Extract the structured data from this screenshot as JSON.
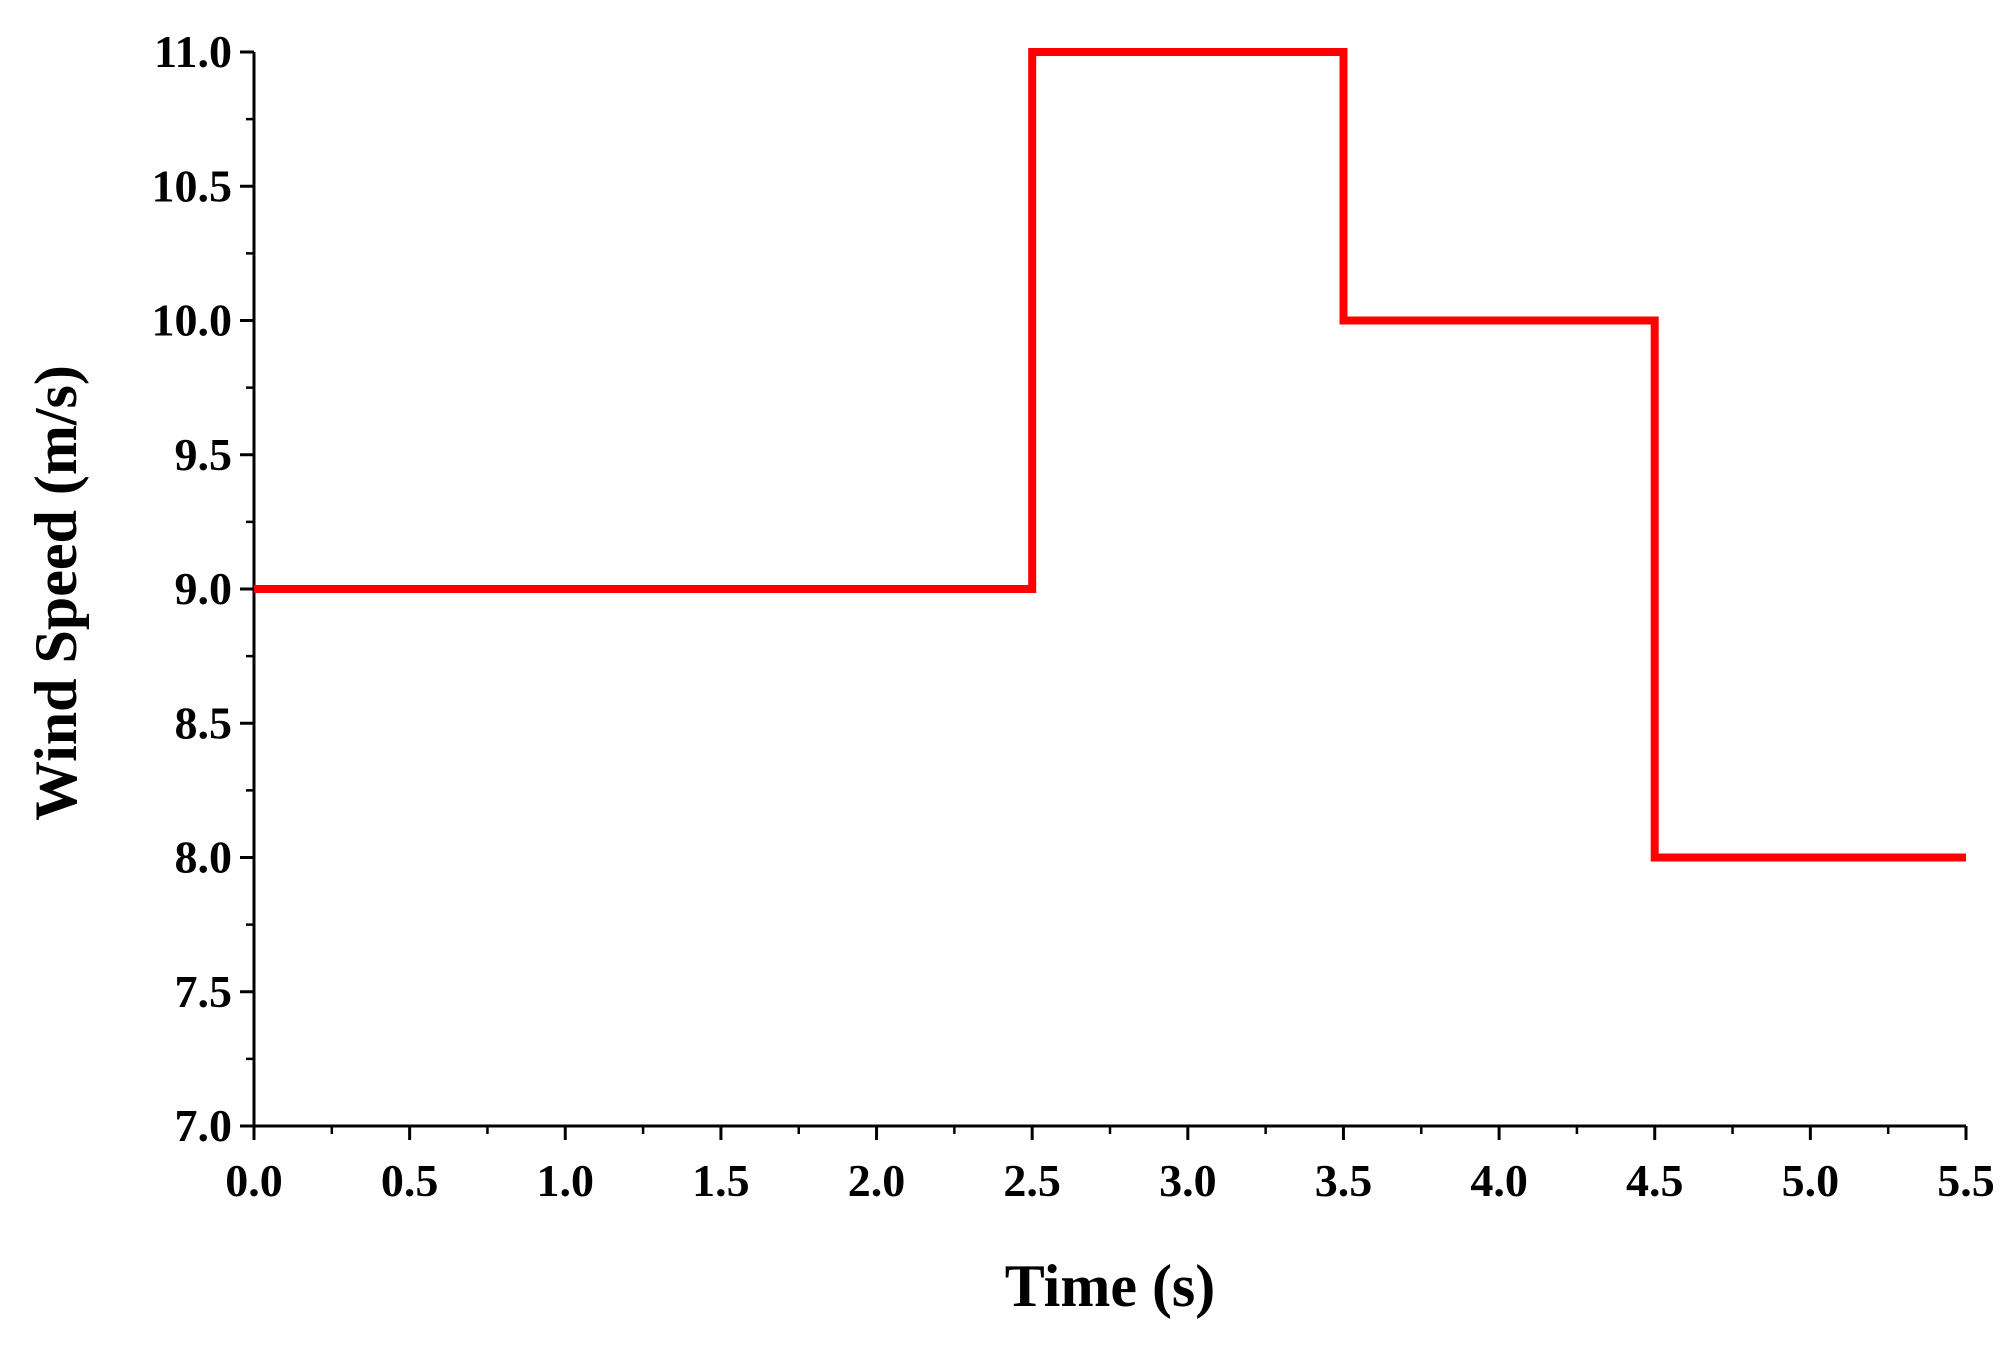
{
  "chart_data": {
    "type": "line",
    "step": true,
    "xlabel": "Time (s)",
    "ylabel": "Wind Speed (m/s)",
    "xlim": [
      0.0,
      5.5
    ],
    "ylim": [
      7.0,
      11.0
    ],
    "xticks": [
      "0.0",
      "0.5",
      "1.0",
      "1.5",
      "2.0",
      "2.5",
      "3.0",
      "3.5",
      "4.0",
      "4.5",
      "5.0",
      "5.5"
    ],
    "yticks": [
      "7.0",
      "7.5",
      "8.0",
      "8.5",
      "9.0",
      "9.5",
      "10.0",
      "10.5",
      "11.0"
    ],
    "grid": false,
    "series": [
      {
        "color": "#ff0000",
        "x": [
          0.0,
          2.5,
          2.5,
          3.5,
          3.5,
          4.5,
          4.5,
          5.5
        ],
        "y": [
          9.0,
          9.0,
          11.0,
          11.0,
          10.0,
          10.0,
          8.0,
          8.0
        ]
      }
    ]
  }
}
